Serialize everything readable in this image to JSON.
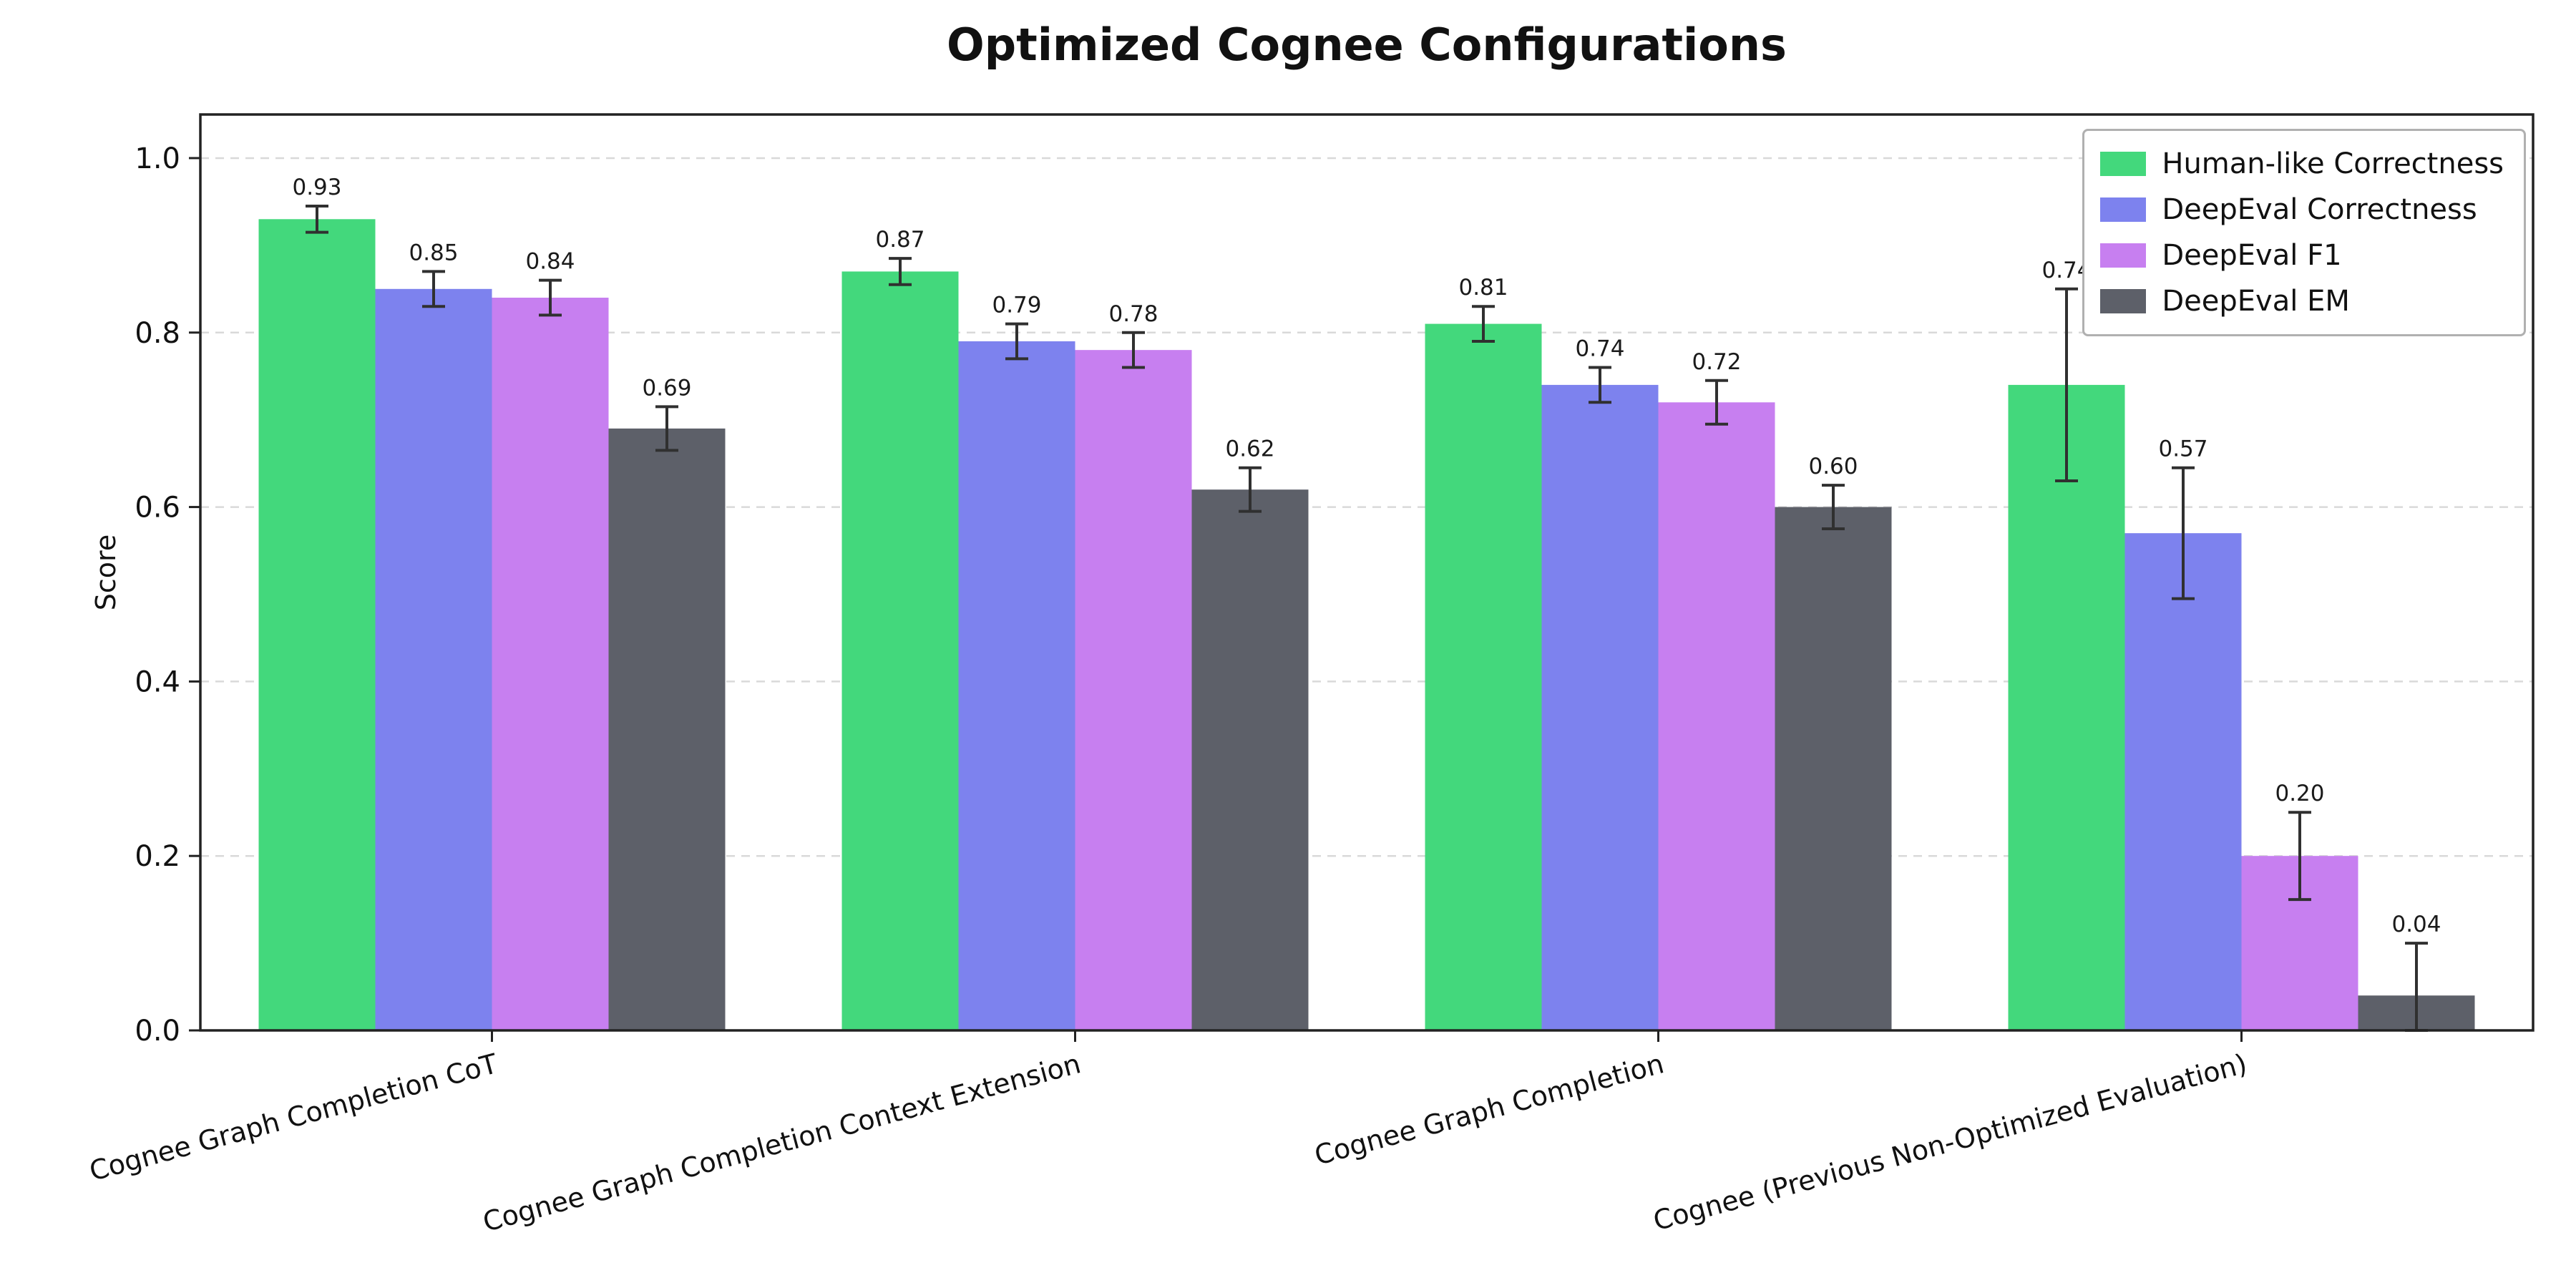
{
  "chart_data": {
    "type": "bar",
    "title": "Optimized Cognee Configurations",
    "ylabel": "Score",
    "ylim": [
      0,
      1.05
    ],
    "yticks": [
      0.0,
      0.2,
      0.4,
      0.6,
      0.8,
      1.0
    ],
    "grid": "horizontal-dashed",
    "legend_position": "top-right",
    "error_bars": true,
    "categories": [
      "Cognee Graph Completion CoT",
      "Cognee Graph Completion Context Extension",
      "Cognee Graph Completion",
      "Cognee (Previous Non-Optimized Evaluation)"
    ],
    "series": [
      {
        "name": "Human-like Correctness",
        "color": "#43d87c",
        "values": [
          0.93,
          0.87,
          0.81,
          0.74
        ],
        "errors": [
          0.015,
          0.015,
          0.02,
          0.11
        ]
      },
      {
        "name": "DeepEval Correctness",
        "color": "#7d82ee",
        "values": [
          0.85,
          0.79,
          0.74,
          0.57
        ],
        "errors": [
          0.02,
          0.02,
          0.02,
          0.075
        ]
      },
      {
        "name": "DeepEval F1",
        "color": "#c77ff0",
        "values": [
          0.84,
          0.78,
          0.72,
          0.2
        ],
        "errors": [
          0.02,
          0.02,
          0.025,
          0.05
        ]
      },
      {
        "name": "DeepEval EM",
        "color": "#5d6069",
        "values": [
          0.69,
          0.62,
          0.6,
          0.04
        ],
        "errors": [
          0.025,
          0.025,
          0.025,
          0.06
        ]
      }
    ]
  }
}
